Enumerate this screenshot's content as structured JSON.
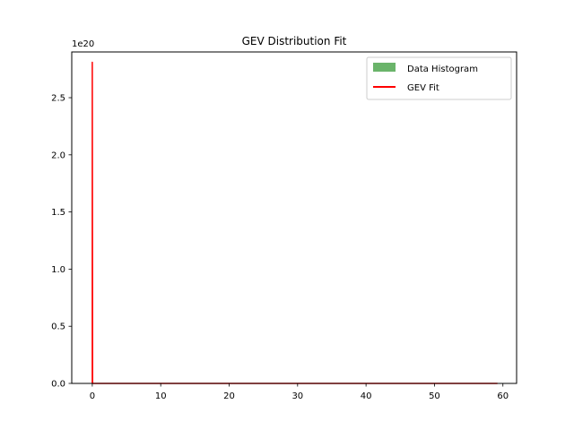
{
  "chart_data": {
    "type": "line",
    "title": "GEV Distribution Fit",
    "xlabel": "",
    "ylabel": "",
    "xlim": [
      -3,
      62
    ],
    "ylim": [
      0,
      2.9e+20
    ],
    "offset_text": "1e20",
    "y_scale_factor": 1e+20,
    "grid": false,
    "legend_position": "top-right",
    "x_ticks": [
      0,
      10,
      20,
      30,
      40,
      50,
      60
    ],
    "x_tick_labels": [
      "0",
      "10",
      "20",
      "30",
      "40",
      "50",
      "60"
    ],
    "y_ticks": [
      0,
      5e+19,
      1e+20,
      1.5e+20,
      2e+20,
      2.5e+20
    ],
    "y_tick_labels": [
      "0.0",
      "0.5",
      "1.0",
      "1.5",
      "2.0",
      "2.5"
    ],
    "legend": [
      "Data Histogram",
      "GEV Fit"
    ],
    "series": [
      {
        "name": "Data Histogram",
        "kind": "histogram",
        "color": "#6ab46a",
        "bins": [
          [
            0,
            59.2,
            0
          ]
        ]
      },
      {
        "name": "GEV Fit",
        "kind": "line",
        "color": "#ff0000",
        "x": [
          0.0,
          0.0,
          0.05,
          59.2
        ],
        "y": [
          0,
          2.81e+20,
          0,
          0
        ]
      }
    ]
  }
}
